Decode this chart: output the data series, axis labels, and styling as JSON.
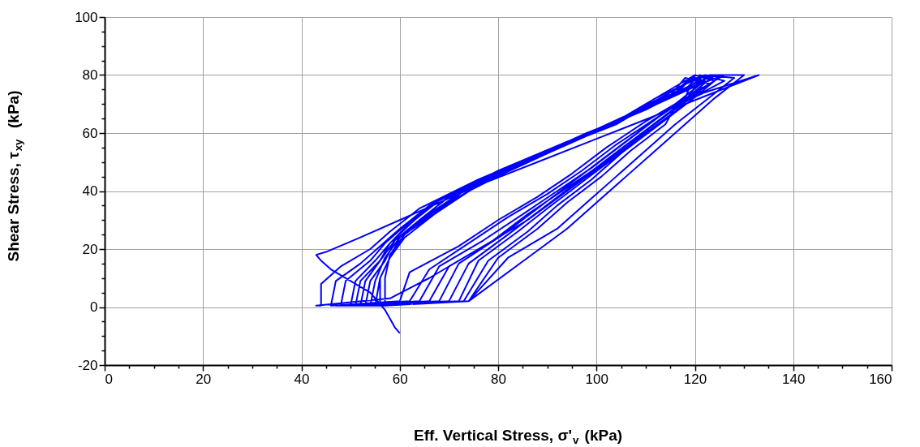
{
  "chart_data": {
    "type": "line",
    "xlabel": "Eff. Vertical Stress, σ'$_{v}$ (kPa)",
    "ylabel": "Shear Stress, τ$_{xy}$  (kPa)",
    "xlim": [
      0,
      160
    ],
    "ylim": [
      -20,
      100
    ],
    "xticks": [
      0,
      {
        "value": 5,
        "label": null
      },
      {
        "value": 10,
        "label": null
      },
      {
        "value": 15,
        "label": null
      },
      20,
      {
        "value": 25,
        "label": null
      },
      {
        "value": 30,
        "label": null
      },
      {
        "value": 35,
        "label": null
      },
      40,
      {
        "value": 45,
        "label": null
      },
      {
        "value": 50,
        "label": null
      },
      {
        "value": 55,
        "label": null
      },
      60,
      {
        "value": 65,
        "label": null
      },
      {
        "value": 70,
        "label": null
      },
      {
        "value": 75,
        "label": null
      },
      80,
      {
        "value": 85,
        "label": null
      },
      {
        "value": 90,
        "label": null
      },
      {
        "value": 95,
        "label": null
      },
      100,
      {
        "value": 105,
        "label": null
      },
      {
        "value": 110,
        "label": null
      },
      {
        "value": 115,
        "label": null
      },
      120,
      {
        "value": 125,
        "label": null
      },
      {
        "value": 130,
        "label": null
      },
      {
        "value": 135,
        "label": null
      },
      140,
      {
        "value": 145,
        "label": null
      },
      {
        "value": 150,
        "label": null
      },
      {
        "value": 155,
        "label": null
      },
      160
    ],
    "yticks": [
      -20,
      {
        "value": -15,
        "label": null
      },
      {
        "value": -10,
        "label": null
      },
      {
        "value": -5,
        "label": null
      },
      0,
      {
        "value": 5,
        "label": null
      },
      {
        "value": 10,
        "label": null
      },
      {
        "value": 15,
        "label": null
      },
      20,
      {
        "value": 25,
        "label": null
      },
      {
        "value": 30,
        "label": null
      },
      {
        "value": 35,
        "label": null
      },
      40,
      {
        "value": 45,
        "label": null
      },
      {
        "value": 50,
        "label": null
      },
      {
        "value": 55,
        "label": null
      },
      60,
      {
        "value": 65,
        "label": null
      },
      {
        "value": 70,
        "label": null
      },
      {
        "value": 75,
        "label": null
      },
      80,
      {
        "value": 85,
        "label": null
      },
      {
        "value": 90,
        "label": null
      },
      {
        "value": 95,
        "label": null
      },
      100
    ],
    "grid": true,
    "legend": false,
    "marker": "none",
    "line_style": "solid",
    "series": [
      {
        "color": "#0000ff",
        "x": [
          60,
          59,
          58,
          57,
          56,
          54,
          50,
          46,
          44,
          43,
          45,
          52,
          60,
          68,
          76,
          88,
          100,
          112,
          122,
          133,
          127,
          118,
          110,
          102,
          94,
          86,
          76,
          66,
          58,
          43,
          44,
          44,
          48,
          54,
          58,
          64,
          76,
          90,
          102,
          110,
          120,
          118,
          110,
          102,
          95,
          88,
          80,
          72,
          62,
          60,
          46,
          46,
          47,
          52,
          56,
          60,
          66,
          78,
          92,
          104,
          112,
          124,
          119,
          112,
          104,
          97,
          90,
          82,
          74,
          66,
          62,
          47,
          48,
          49,
          54,
          57,
          61,
          67,
          80,
          94,
          106,
          113,
          126,
          120,
          113,
          106,
          99,
          92,
          85,
          77,
          68,
          64,
          48,
          50,
          51,
          55,
          58,
          62,
          68,
          82,
          96,
          105,
          112,
          122,
          121,
          114,
          107,
          100,
          93,
          86,
          79,
          70,
          66,
          50,
          51,
          52,
          56,
          58,
          63,
          69,
          84,
          97,
          106,
          114,
          120,
          122,
          116,
          109,
          102,
          95,
          88,
          81,
          72,
          68,
          51,
          52,
          53,
          56,
          59,
          64,
          70,
          85,
          98,
          107,
          115,
          118,
          123,
          117,
          110,
          103,
          96,
          89,
          82,
          74,
          70,
          52,
          53,
          54,
          57,
          59,
          65,
          72,
          86,
          99,
          108,
          116,
          119,
          121,
          118,
          111,
          104,
          97,
          90,
          84,
          76,
          72,
          53,
          54,
          55,
          57,
          60,
          66,
          73,
          87,
          100,
          109,
          117,
          120,
          124,
          119,
          112,
          105,
          99,
          92,
          86,
          78,
          73,
          54,
          55,
          56,
          58,
          60,
          66,
          74,
          88,
          100,
          110,
          118,
          121,
          126,
          116,
          114,
          107,
          101,
          94,
          88,
          80,
          74,
          55,
          56,
          56,
          58,
          61,
          67,
          75,
          89,
          101,
          110,
          119,
          122,
          128,
          122,
          116,
          110,
          104,
          98,
          92,
          82,
          74,
          56,
          57,
          57,
          58,
          61,
          67,
          76,
          90,
          102,
          111,
          120,
          123,
          130,
          124,
          118,
          112,
          106,
          100,
          94,
          86,
          74,
          57
        ],
        "values": [
          -9,
          -7,
          -4,
          -1,
          1,
          5,
          9,
          13,
          16,
          18,
          19,
          24,
          30,
          36,
          42,
          50,
          58,
          66,
          74,
          80,
          76,
          70,
          60,
          50,
          40,
          30,
          20,
          10,
          3,
          0.5,
          0.5,
          8,
          14,
          20,
          26,
          34,
          44,
          54,
          62,
          70,
          80,
          72,
          64,
          55,
          46,
          38,
          30,
          21,
          12,
          2,
          0.5,
          0.5,
          9,
          15,
          21,
          27,
          35,
          45,
          55,
          63,
          71,
          80,
          73,
          65,
          56,
          47,
          39,
          31,
          22,
          13,
          2,
          0.5,
          0.5,
          9,
          16,
          22,
          28,
          36,
          47,
          57,
          65,
          72,
          80,
          74,
          66,
          57,
          48,
          40,
          32,
          23,
          14,
          2,
          0.5,
          0.5,
          9,
          16,
          22,
          29,
          37,
          48,
          58,
          65,
          72,
          80,
          74,
          66,
          57,
          48,
          40,
          32,
          23,
          14,
          2,
          0.5,
          0.5,
          9,
          16,
          22,
          30,
          38,
          49,
          59,
          66,
          73,
          79,
          78,
          70,
          61,
          52,
          43,
          34,
          25,
          15,
          2,
          0.5,
          0.5,
          9,
          16,
          23,
          30,
          38,
          50,
          60,
          66,
          73,
          79,
          77,
          70,
          61,
          52,
          43,
          34,
          25,
          15,
          2,
          0.5,
          0.5,
          9,
          16,
          23,
          31,
          39,
          50,
          60,
          67,
          74,
          79,
          78,
          71,
          62,
          52,
          43,
          34,
          26,
          16,
          2,
          0.5,
          0.5,
          9,
          17,
          24,
          31,
          40,
          51,
          61,
          68,
          75,
          80,
          78,
          71,
          62,
          53,
          44,
          35,
          26,
          16,
          2,
          0.5,
          0.5,
          10,
          17,
          24,
          32,
          40,
          52,
          61,
          68,
          75,
          80,
          78,
          69,
          63,
          54,
          45,
          36,
          27,
          17,
          2,
          0.5,
          0.5,
          10,
          17,
          24,
          32,
          41,
          53,
          62,
          69,
          76,
          80,
          79,
          71,
          63,
          54,
          45,
          36,
          27,
          17,
          2,
          0.5,
          0.5,
          10,
          18,
          25,
          33,
          42,
          53,
          62,
          69,
          76,
          80,
          80,
          72,
          63,
          54,
          45,
          36,
          27,
          17,
          2,
          0.5
        ]
      }
    ]
  }
}
